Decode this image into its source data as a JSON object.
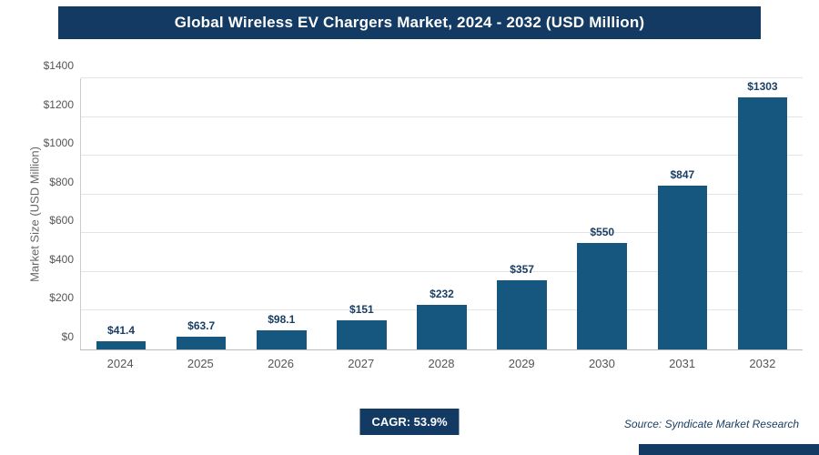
{
  "header": {
    "title": "Global Wireless EV Chargers Market, 2024 - 2032 (USD Million)"
  },
  "chart_data": {
    "type": "bar",
    "title": "Global Wireless EV Chargers Market, 2024 - 2032 (USD Million)",
    "categories": [
      "2024",
      "2025",
      "2026",
      "2027",
      "2028",
      "2029",
      "2030",
      "2031",
      "2032"
    ],
    "values": [
      41.4,
      63.7,
      98.1,
      151,
      232,
      357,
      550,
      847,
      1303
    ],
    "value_labels": [
      "$41.4",
      "$63.7",
      "$98.1",
      "$151",
      "$232",
      "$357",
      "$550",
      "$847",
      "$1303"
    ],
    "xlabel": "",
    "ylabel": "Market Size (USD Million)",
    "ylim": [
      0,
      1400
    ],
    "ytick_step": 200,
    "ytick_prefix": "$",
    "grid": true,
    "legend": "none",
    "bar_color": "#15577f"
  },
  "footer": {
    "cagr_label": "CAGR: 53.9%",
    "source": "Source: Syndicate Market Research"
  },
  "colors": {
    "title_bar_bg": "#123a62",
    "title_bar_text": "#ffffff",
    "bar": "#15577f",
    "value_label": "#1a3e64",
    "axis_text": "#555555",
    "gridline": "#e4e4e4"
  }
}
